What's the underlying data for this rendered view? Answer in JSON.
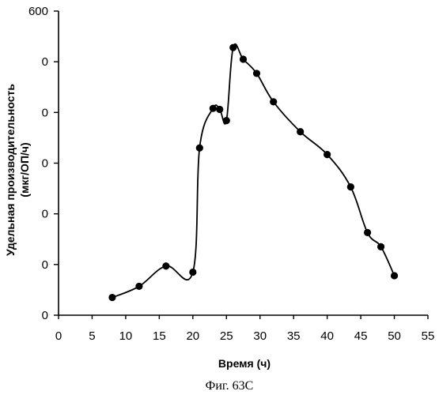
{
  "chart_data": {
    "type": "line",
    "xlabel": "Время (ч)",
    "ylabel_line1": "Удельная производительность",
    "ylabel_line2": "(мкг/ОП/ч)",
    "xlim": [
      0,
      55
    ],
    "ylim": [
      0,
      600
    ],
    "x_ticks": [
      "0",
      "5",
      "10",
      "15",
      "20",
      "25",
      "30",
      "35",
      "40",
      "45",
      "50",
      "55"
    ],
    "y_ticks": [
      "0",
      "0",
      "0",
      "0",
      "0",
      "0",
      "600"
    ],
    "grid": false,
    "series": [
      {
        "x": [
          8,
          12,
          16,
          20,
          21,
          23,
          24,
          25,
          26,
          27.5,
          29.5,
          32,
          36,
          40,
          43.5,
          46,
          48,
          50
        ],
        "y": [
          35,
          57,
          97,
          85,
          330,
          408,
          406,
          384,
          528,
          505,
          477,
          421,
          362,
          317,
          253,
          163,
          135,
          78
        ]
      }
    ]
  },
  "caption": "Фиг. 63С"
}
